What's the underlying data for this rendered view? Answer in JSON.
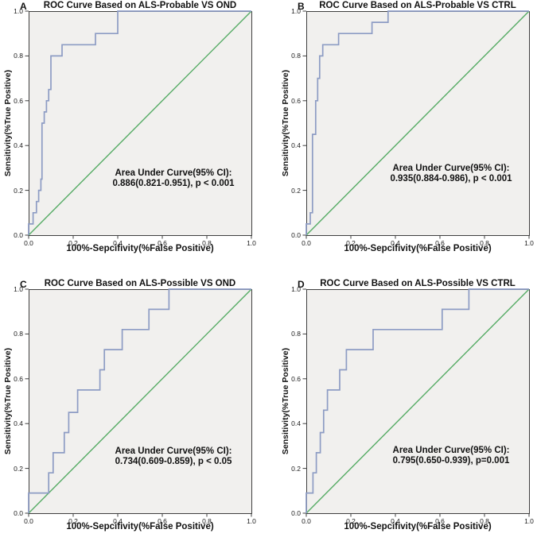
{
  "figure": {
    "kind": "2x2 ROC curve panels",
    "background": "#ffffff"
  },
  "style": {
    "roc_color": "#8d9cc4",
    "diagonal_color": "#55ab64",
    "plot_bg": "#f1f0ee",
    "frame_color": "#3f3f3f",
    "text_color": "#111111"
  },
  "chart_data": [
    {
      "type": "line",
      "panel": "A",
      "title": "ROC Curve Based on ALS-Probable VS OND",
      "xlabel": "100%-Sepcifivity(%False Positive)",
      "ylabel": "Sensitivity(%True Positive)",
      "xlim": [
        0.0,
        1.0
      ],
      "ylim": [
        0.0,
        1.0
      ],
      "x_ticks": [
        "0.0",
        "0.2",
        "0.4",
        "0.6",
        "0.8",
        "1.0"
      ],
      "y_ticks": [
        "0.0",
        "0.2",
        "0.4",
        "0.6",
        "0.8",
        "1.0"
      ],
      "grid": false,
      "legend": "none",
      "annotation": {
        "line1": "Area Under Curve(95% CI):",
        "line2": "0.886(0.821-0.951), p < 0.001",
        "auc": 0.886,
        "ci_95": [
          0.821,
          0.951
        ],
        "p": "p < 0.001"
      },
      "series": [
        {
          "name": "roc-curve",
          "points": [
            [
              0,
              0
            ],
            [
              0,
              0.05
            ],
            [
              0.02,
              0.05
            ],
            [
              0.02,
              0.1
            ],
            [
              0.035,
              0.1
            ],
            [
              0.035,
              0.15
            ],
            [
              0.045,
              0.15
            ],
            [
              0.045,
              0.2
            ],
            [
              0.055,
              0.2
            ],
            [
              0.055,
              0.25
            ],
            [
              0.06,
              0.25
            ],
            [
              0.06,
              0.5
            ],
            [
              0.07,
              0.5
            ],
            [
              0.07,
              0.55
            ],
            [
              0.08,
              0.55
            ],
            [
              0.08,
              0.6
            ],
            [
              0.09,
              0.6
            ],
            [
              0.09,
              0.65
            ],
            [
              0.1,
              0.65
            ],
            [
              0.1,
              0.8
            ],
            [
              0.15,
              0.8
            ],
            [
              0.15,
              0.85
            ],
            [
              0.3,
              0.85
            ],
            [
              0.3,
              0.9
            ],
            [
              0.4,
              0.9
            ],
            [
              0.4,
              1
            ],
            [
              1,
              1
            ]
          ]
        },
        {
          "name": "reference-diagonal",
          "points": [
            [
              0,
              0
            ],
            [
              1,
              1
            ]
          ]
        }
      ]
    },
    {
      "type": "line",
      "panel": "B",
      "title": "ROC Curve Based on ALS-Probable VS CTRL",
      "xlabel": "100%-Sepcifivity(%False Positive)",
      "ylabel": "Sensitivity(%True Positive)",
      "xlim": [
        0.0,
        1.0
      ],
      "ylim": [
        0.0,
        1.0
      ],
      "x_ticks": [
        "0.0",
        "0.2",
        "0.4",
        "0.6",
        "0.8",
        "1.0"
      ],
      "y_ticks": [
        "0.0",
        "0.2",
        "0.4",
        "0.6",
        "0.8",
        "1.0"
      ],
      "grid": false,
      "legend": "none",
      "annotation": {
        "line1": "Area Under Curve(95% CI):",
        "line2": "0.935(0.884-0.986), p < 0.001",
        "auc": 0.935,
        "ci_95": [
          0.884,
          0.986
        ],
        "p": "p < 0.001"
      },
      "series": [
        {
          "name": "roc-curve",
          "points": [
            [
              0,
              0
            ],
            [
              0,
              0.05
            ],
            [
              0.018,
              0.05
            ],
            [
              0.018,
              0.1
            ],
            [
              0.028,
              0.1
            ],
            [
              0.028,
              0.45
            ],
            [
              0.042,
              0.45
            ],
            [
              0.042,
              0.6
            ],
            [
              0.051,
              0.6
            ],
            [
              0.051,
              0.7
            ],
            [
              0.06,
              0.7
            ],
            [
              0.06,
              0.8
            ],
            [
              0.074,
              0.8
            ],
            [
              0.074,
              0.85
            ],
            [
              0.145,
              0.85
            ],
            [
              0.145,
              0.9
            ],
            [
              0.295,
              0.9
            ],
            [
              0.295,
              0.95
            ],
            [
              0.367,
              0.95
            ],
            [
              0.367,
              1
            ],
            [
              1,
              1
            ]
          ]
        },
        {
          "name": "reference-diagonal",
          "points": [
            [
              0,
              0
            ],
            [
              1,
              1
            ]
          ]
        }
      ]
    },
    {
      "type": "line",
      "panel": "C",
      "title": "ROC Curve Based on ALS-Possible VS OND",
      "xlabel": "100%-Sepcifivity(%False Positive)",
      "ylabel": "Sensitivity(%True Positive)",
      "xlim": [
        0.0,
        1.0
      ],
      "ylim": [
        0.0,
        1.0
      ],
      "x_ticks": [
        "0.0",
        "0.2",
        "0.4",
        "0.6",
        "0.8",
        "1.0"
      ],
      "y_ticks": [
        "0.0",
        "0.2",
        "0.4",
        "0.6",
        "0.8",
        "1.0"
      ],
      "grid": false,
      "legend": "none",
      "annotation": {
        "line1": "Area Under Curve(95% CI):",
        "line2": "0.734(0.609-0.859), p < 0.05",
        "auc": 0.734,
        "ci_95": [
          0.609,
          0.859
        ],
        "p": "p < 0.05"
      },
      "series": [
        {
          "name": "roc-curve",
          "points": [
            [
              0,
              0
            ],
            [
              0,
              0.09
            ],
            [
              0.09,
              0.09
            ],
            [
              0.09,
              0.18
            ],
            [
              0.11,
              0.18
            ],
            [
              0.11,
              0.27
            ],
            [
              0.16,
              0.27
            ],
            [
              0.16,
              0.36
            ],
            [
              0.18,
              0.36
            ],
            [
              0.18,
              0.45
            ],
            [
              0.22,
              0.45
            ],
            [
              0.22,
              0.55
            ],
            [
              0.32,
              0.55
            ],
            [
              0.32,
              0.64
            ],
            [
              0.34,
              0.64
            ],
            [
              0.34,
              0.73
            ],
            [
              0.42,
              0.73
            ],
            [
              0.42,
              0.82
            ],
            [
              0.54,
              0.82
            ],
            [
              0.54,
              0.91
            ],
            [
              0.63,
              0.91
            ],
            [
              0.63,
              1
            ],
            [
              1,
              1
            ]
          ]
        },
        {
          "name": "reference-diagonal",
          "points": [
            [
              0,
              0
            ],
            [
              1,
              1
            ]
          ]
        }
      ]
    },
    {
      "type": "line",
      "panel": "D",
      "title": "ROC Curve Based on ALS-Possible VS CTRL",
      "xlabel": "100%-Sepcifivity(%False Positive)",
      "ylabel": "Sensitivity(%True Positive)",
      "xlim": [
        0.0,
        1.0
      ],
      "ylim": [
        0.0,
        1.0
      ],
      "x_ticks": [
        "0.0",
        "0.2",
        "0.4",
        "0.6",
        "0.8",
        "1.0"
      ],
      "y_ticks": [
        "0.0",
        "0.2",
        "0.4",
        "0.6",
        "0.8",
        "1.0"
      ],
      "grid": false,
      "legend": "none",
      "annotation": {
        "line1": "Area Under Curve(95% CI):",
        "line2": "0.795(0.650-0.939), p=0.001",
        "auc": 0.795,
        "ci_95": [
          0.65,
          0.939
        ],
        "p": "p=0.001"
      },
      "series": [
        {
          "name": "roc-curve",
          "points": [
            [
              0,
              0
            ],
            [
              0,
              0.09
            ],
            [
              0.03,
              0.09
            ],
            [
              0.03,
              0.18
            ],
            [
              0.045,
              0.18
            ],
            [
              0.045,
              0.27
            ],
            [
              0.063,
              0.27
            ],
            [
              0.063,
              0.36
            ],
            [
              0.078,
              0.36
            ],
            [
              0.078,
              0.46
            ],
            [
              0.095,
              0.46
            ],
            [
              0.095,
              0.55
            ],
            [
              0.15,
              0.55
            ],
            [
              0.15,
              0.64
            ],
            [
              0.18,
              0.64
            ],
            [
              0.18,
              0.73
            ],
            [
              0.3,
              0.73
            ],
            [
              0.3,
              0.82
            ],
            [
              0.61,
              0.82
            ],
            [
              0.61,
              0.91
            ],
            [
              0.73,
              0.91
            ],
            [
              0.73,
              1
            ],
            [
              1,
              1
            ]
          ]
        },
        {
          "name": "reference-diagonal",
          "points": [
            [
              0,
              0
            ],
            [
              1,
              1
            ]
          ]
        }
      ]
    }
  ]
}
